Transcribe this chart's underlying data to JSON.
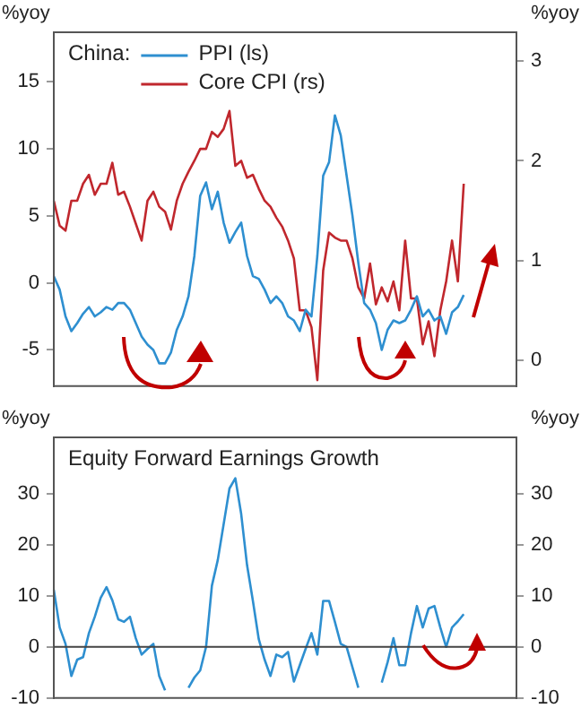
{
  "chart_data": [
    {
      "type": "line",
      "legend_title": "China:",
      "ylabel": "%yoy",
      "y2label": "%yoy",
      "categories": [
        null,
        null,
        null,
        null,
        null,
        null,
        null,
        null,
        null,
        null,
        null,
        null,
        null,
        null,
        null,
        null,
        null,
        null,
        null,
        null,
        null,
        null,
        null,
        null,
        null,
        null,
        null,
        null,
        null,
        null,
        null,
        null,
        null,
        null,
        null,
        null,
        null,
        null,
        null,
        null,
        null,
        null,
        null,
        null,
        null,
        null,
        null,
        null,
        null,
        null,
        null,
        null,
        null,
        null,
        null,
        null,
        null,
        null,
        null,
        null,
        null,
        null,
        null,
        null,
        null,
        null,
        null,
        null,
        null,
        null,
        null,
        null,
        null,
        null,
        null,
        null,
        null,
        null,
        null,
        null
      ],
      "series": [
        {
          "name": "PPI (ls)",
          "color": "#2e8fd0",
          "values": [
            0.5,
            -0.5,
            -2.5,
            -3.6,
            -3,
            -2.3,
            -1.8,
            -2.5,
            -2.2,
            -1.8,
            -2,
            -1.5,
            -1.5,
            -2,
            -3,
            -4,
            -4.6,
            -5,
            -6,
            -6,
            -5.2,
            -3.5,
            -2.5,
            -1,
            2,
            6.5,
            7.5,
            5.5,
            6.8,
            4.5,
            3,
            3.8,
            4.5,
            2,
            0.5,
            0.3,
            -0.5,
            -1.5,
            -1,
            -1.5,
            -2.5,
            -2.8,
            -3.6,
            -2,
            -2.5,
            2,
            8,
            9,
            12.5,
            11,
            8,
            5,
            1.5,
            -1.5,
            -2,
            -3,
            -5,
            -3.5,
            -2.8,
            -3,
            -2.8,
            -2,
            -1,
            -2.5,
            -2,
            -2.8,
            -2.5,
            -3.8,
            -2.2,
            -1.8,
            -0.9,
            null,
            null,
            null,
            null,
            null,
            null,
            null,
            null,
            null
          ]
        },
        {
          "name": "Core CPI (rs)",
          "color": "#c0272d",
          "axis": "y2",
          "values": [
            1.6,
            1.35,
            1.3,
            1.6,
            1.6,
            1.77,
            1.86,
            1.66,
            1.77,
            1.77,
            1.98,
            1.66,
            1.69,
            1.54,
            1.37,
            1.2,
            1.6,
            1.69,
            1.54,
            1.49,
            1.31,
            1.6,
            1.77,
            1.89,
            2,
            2.12,
            2.12,
            2.29,
            2.24,
            2.32,
            2.5,
            1.95,
            2,
            1.83,
            1.86,
            1.72,
            1.6,
            1.54,
            1.43,
            1.34,
            1.2,
            1.02,
            0.5,
            0.5,
            0.33,
            -0.2,
            0.9,
            1.28,
            1.23,
            1.2,
            1.2,
            1.02,
            0.73,
            0.62,
            0.97,
            0.56,
            0.73,
            0.59,
            0.79,
            0.5,
            1.2,
            0.62,
            0.62,
            0.16,
            0.39,
            0.04,
            0.5,
            0.79,
            1.2,
            0.79,
            1.77,
            null,
            null,
            null,
            null,
            null,
            null,
            null,
            null,
            null
          ]
        }
      ],
      "ylim": [
        -7.7,
        18.7
      ],
      "yticks": [
        -5,
        0,
        5,
        10,
        15
      ],
      "y2lim": [
        -0.26,
        3.29
      ],
      "y2ticks": [
        0,
        1,
        2,
        3
      ],
      "grid": false,
      "legend": "top left",
      "tick_labels": "y"
    },
    {
      "type": "line",
      "title": "Equity Forward Earnings Growth",
      "ylabel": "%yoy",
      "y2label": "%yoy",
      "categories": [
        null,
        null,
        null,
        null,
        null,
        null,
        null,
        null,
        null,
        null,
        null,
        null,
        null,
        null,
        null,
        null,
        null,
        null,
        null,
        null,
        null,
        null,
        null,
        null,
        null,
        null,
        null,
        null,
        null,
        null,
        null,
        null,
        null,
        null,
        null,
        null,
        null,
        null,
        null,
        null,
        null,
        null,
        null,
        null,
        null,
        null,
        null,
        null,
        null,
        null,
        null,
        null,
        null,
        null,
        null,
        null,
        null,
        null,
        null,
        null,
        null,
        null,
        null,
        null,
        null,
        null,
        null,
        null,
        null,
        null,
        null,
        null,
        null,
        null,
        null,
        null,
        null,
        null,
        null,
        null
      ],
      "series": [
        {
          "color": "#2e8fd0",
          "values": [
            11.2,
            3.8,
            0.6,
            -5.7,
            -2.5,
            -2,
            2.7,
            5.9,
            9.6,
            11.7,
            9.1,
            5.4,
            4.9,
            5.9,
            1.7,
            -1.5,
            -0.4,
            0.6,
            -5.7,
            -8.5,
            null,
            null,
            null,
            -8,
            -6,
            -4.6,
            0,
            12,
            17,
            24,
            31,
            33,
            26,
            16,
            9,
            1.5,
            -2.5,
            -5.7,
            -1.5,
            -2,
            -1,
            -6.8,
            -3.6,
            -0.4,
            2.7,
            -1.5,
            9,
            9,
            4.9,
            0.6,
            0,
            -4,
            -8,
            null,
            null,
            null,
            -7,
            -3,
            1.7,
            -3.6,
            -3.6,
            2.7,
            8,
            3.8,
            7.5,
            8,
            3.8,
            0,
            3.8,
            5,
            6.4,
            null,
            null,
            null,
            null,
            null,
            null,
            null,
            null,
            null
          ]
        }
      ],
      "ylim": [
        -10,
        41
      ],
      "yticks": [
        -10,
        0,
        10,
        20,
        30
      ],
      "y2lim": [
        -10,
        41
      ],
      "y2ticks": [
        -10,
        0,
        10,
        20,
        30
      ],
      "ref_lines": [
        {
          "axis": "y",
          "value": 0,
          "color": "#444444"
        }
      ],
      "grid": false,
      "legend": false,
      "tick_labels": "y"
    }
  ]
}
